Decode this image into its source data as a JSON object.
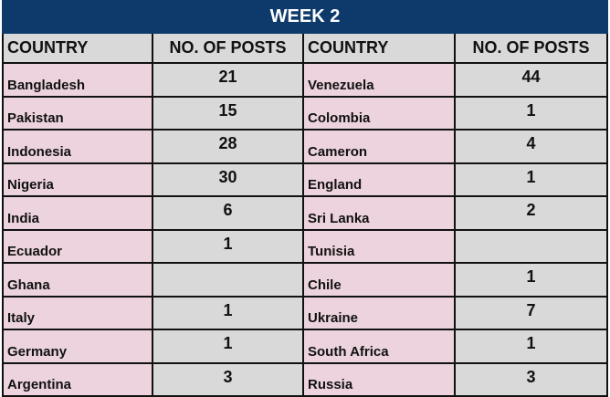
{
  "title": "WEEK 2",
  "headers": [
    "COUNTRY",
    "NO. OF POSTS",
    "COUNTRY",
    "NO. OF POSTS"
  ],
  "rows": [
    {
      "left_country": "Bangladesh",
      "left_posts": "21",
      "right_country": "Venezuela",
      "right_posts": "44"
    },
    {
      "left_country": "Pakistan",
      "left_posts": "15",
      "right_country": "Colombia",
      "right_posts": "1"
    },
    {
      "left_country": "Indonesia",
      "left_posts": "28",
      "right_country": "Cameron",
      "right_posts": "4"
    },
    {
      "left_country": "Nigeria",
      "left_posts": "30",
      "right_country": "England",
      "right_posts": "1"
    },
    {
      "left_country": "India",
      "left_posts": "6",
      "right_country": "Sri Lanka",
      "right_posts": "2"
    },
    {
      "left_country": "Ecuador",
      "left_posts": "1",
      "right_country": "Tunisia",
      "right_posts": ""
    },
    {
      "left_country": "Ghana",
      "left_posts": "",
      "right_country": "Chile",
      "right_posts": "1"
    },
    {
      "left_country": "Italy",
      "left_posts": "1",
      "right_country": "Ukraine",
      "right_posts": "7"
    },
    {
      "left_country": "Germany",
      "left_posts": "1",
      "right_country": "South Africa",
      "right_posts": "1"
    },
    {
      "left_country": "Argentina",
      "left_posts": "3",
      "right_country": "Russia",
      "right_posts": "3"
    }
  ],
  "colors": {
    "title_bg": "#0d3a6a",
    "country_bg": "#ecd3dd",
    "posts_bg": "#d9d9d9"
  }
}
